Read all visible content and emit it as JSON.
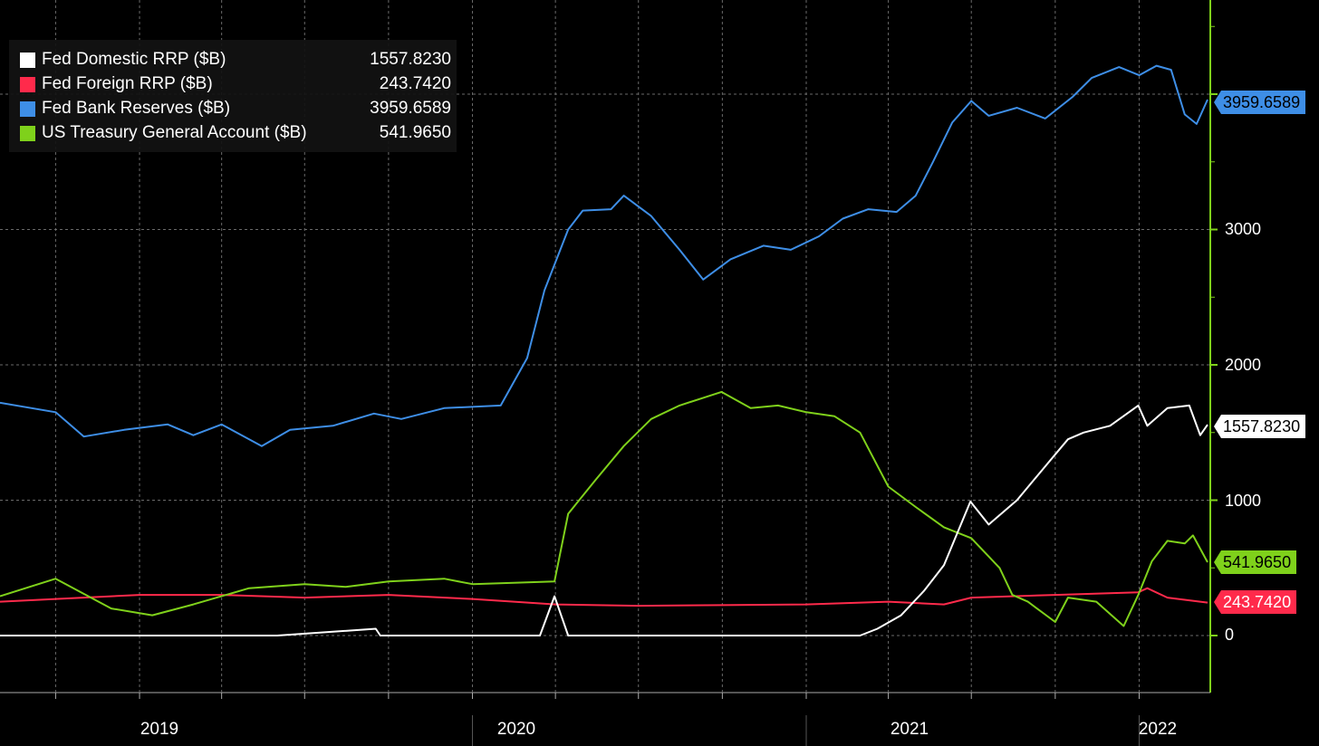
{
  "chart_data": {
    "type": "line",
    "title": "",
    "xlabel": "",
    "ylabel": "",
    "x_range": [
      "2018-08-01",
      "2022-03-20"
    ],
    "ylim": [
      -400,
      4700
    ],
    "y_ticks": [
      0,
      1000,
      2000,
      3000
    ],
    "x_tick_labels": [
      "2019",
      "2020",
      "2021",
      "2022"
    ],
    "legend_position": "top-left",
    "grid": true,
    "series": [
      {
        "name": "Fed Domestic RRP ($B)",
        "last_value": "1557.8230",
        "color": "#ffffff",
        "data": [
          [
            "2018-08-01",
            0
          ],
          [
            "2019-06-01",
            0
          ],
          [
            "2019-09-17",
            50
          ],
          [
            "2019-09-22",
            0
          ],
          [
            "2019-12-31",
            0
          ],
          [
            "2020-03-15",
            0
          ],
          [
            "2020-03-31",
            290
          ],
          [
            "2020-04-15",
            0
          ],
          [
            "2020-05-01",
            0
          ],
          [
            "2021-03-01",
            0
          ],
          [
            "2021-03-20",
            50
          ],
          [
            "2021-04-15",
            150
          ],
          [
            "2021-05-10",
            330
          ],
          [
            "2021-06-01",
            520
          ],
          [
            "2021-06-30",
            990
          ],
          [
            "2021-07-20",
            820
          ],
          [
            "2021-08-20",
            1000
          ],
          [
            "2021-09-20",
            1250
          ],
          [
            "2021-10-15",
            1450
          ],
          [
            "2021-11-01",
            1500
          ],
          [
            "2021-11-30",
            1550
          ],
          [
            "2021-12-31",
            1700
          ],
          [
            "2022-01-10",
            1550
          ],
          [
            "2022-02-01",
            1680
          ],
          [
            "2022-02-25",
            1700
          ],
          [
            "2022-03-09",
            1480
          ],
          [
            "2022-03-17",
            1557.823
          ]
        ]
      },
      {
        "name": "Fed Foreign RRP ($B)",
        "last_value": "243.7420",
        "color": "#ff2a4b",
        "data": [
          [
            "2018-08-01",
            250
          ],
          [
            "2018-10-01",
            270
          ],
          [
            "2019-01-01",
            300
          ],
          [
            "2019-04-01",
            300
          ],
          [
            "2019-07-01",
            280
          ],
          [
            "2019-10-01",
            300
          ],
          [
            "2020-01-01",
            270
          ],
          [
            "2020-04-01",
            230
          ],
          [
            "2020-07-01",
            220
          ],
          [
            "2020-10-01",
            225
          ],
          [
            "2021-01-01",
            230
          ],
          [
            "2021-04-01",
            250
          ],
          [
            "2021-06-01",
            230
          ],
          [
            "2021-07-01",
            280
          ],
          [
            "2021-10-01",
            300
          ],
          [
            "2021-12-31",
            320
          ],
          [
            "2022-01-10",
            350
          ],
          [
            "2022-02-01",
            280
          ],
          [
            "2022-03-17",
            243.742
          ]
        ]
      },
      {
        "name": "Fed Bank Reserves ($B)",
        "last_value": "3959.6589",
        "color": "#3e8ee6",
        "data": [
          [
            "2018-08-01",
            1720
          ],
          [
            "2018-10-01",
            1650
          ],
          [
            "2018-11-01",
            1470
          ],
          [
            "2018-12-15",
            1520
          ],
          [
            "2019-02-01",
            1560
          ],
          [
            "2019-03-01",
            1480
          ],
          [
            "2019-04-01",
            1560
          ],
          [
            "2019-05-15",
            1400
          ],
          [
            "2019-06-15",
            1520
          ],
          [
            "2019-08-01",
            1550
          ],
          [
            "2019-09-15",
            1640
          ],
          [
            "2019-10-15",
            1600
          ],
          [
            "2019-12-01",
            1680
          ],
          [
            "2020-02-01",
            1700
          ],
          [
            "2020-03-01",
            2050
          ],
          [
            "2020-03-20",
            2550
          ],
          [
            "2020-04-15",
            3000
          ],
          [
            "2020-05-01",
            3140
          ],
          [
            "2020-06-01",
            3150
          ],
          [
            "2020-06-15",
            3250
          ],
          [
            "2020-07-15",
            3100
          ],
          [
            "2020-08-15",
            2850
          ],
          [
            "2020-09-10",
            2630
          ],
          [
            "2020-10-10",
            2780
          ],
          [
            "2020-11-15",
            2880
          ],
          [
            "2020-12-15",
            2850
          ],
          [
            "2021-01-15",
            2950
          ],
          [
            "2021-02-10",
            3080
          ],
          [
            "2021-03-10",
            3150
          ],
          [
            "2021-04-10",
            3130
          ],
          [
            "2021-05-01",
            3250
          ],
          [
            "2021-05-20",
            3500
          ],
          [
            "2021-06-10",
            3790
          ],
          [
            "2021-07-01",
            3950
          ],
          [
            "2021-07-20",
            3840
          ],
          [
            "2021-08-20",
            3900
          ],
          [
            "2021-09-20",
            3820
          ],
          [
            "2021-10-20",
            3980
          ],
          [
            "2021-11-10",
            4120
          ],
          [
            "2021-12-10",
            4200
          ],
          [
            "2022-01-01",
            4140
          ],
          [
            "2022-01-20",
            4210
          ],
          [
            "2022-02-05",
            4180
          ],
          [
            "2022-02-20",
            3850
          ],
          [
            "2022-03-05",
            3780
          ],
          [
            "2022-03-17",
            3959.6589
          ]
        ]
      },
      {
        "name": "US Treasury General Account ($B)",
        "last_value": "541.9650",
        "color": "#7fd11b",
        "data": [
          [
            "2018-08-01",
            290
          ],
          [
            "2018-10-01",
            420
          ],
          [
            "2018-12-01",
            200
          ],
          [
            "2019-01-15",
            150
          ],
          [
            "2019-03-01",
            230
          ],
          [
            "2019-05-01",
            350
          ],
          [
            "2019-07-01",
            380
          ],
          [
            "2019-08-15",
            360
          ],
          [
            "2019-10-01",
            400
          ],
          [
            "2019-12-01",
            420
          ],
          [
            "2020-01-01",
            380
          ],
          [
            "2020-03-31",
            400
          ],
          [
            "2020-04-15",
            900
          ],
          [
            "2020-05-15",
            1150
          ],
          [
            "2020-06-15",
            1400
          ],
          [
            "2020-07-15",
            1600
          ],
          [
            "2020-08-15",
            1700
          ],
          [
            "2020-09-30",
            1800
          ],
          [
            "2020-11-01",
            1680
          ],
          [
            "2020-12-01",
            1700
          ],
          [
            "2021-01-01",
            1650
          ],
          [
            "2021-02-01",
            1620
          ],
          [
            "2021-03-01",
            1500
          ],
          [
            "2021-04-01",
            1100
          ],
          [
            "2021-05-01",
            950
          ],
          [
            "2021-06-01",
            800
          ],
          [
            "2021-07-01",
            720
          ],
          [
            "2021-08-01",
            500
          ],
          [
            "2021-08-15",
            300
          ],
          [
            "2021-09-01",
            250
          ],
          [
            "2021-10-01",
            100
          ],
          [
            "2021-10-15",
            280
          ],
          [
            "2021-11-15",
            250
          ],
          [
            "2021-12-15",
            70
          ],
          [
            "2021-12-31",
            300
          ],
          [
            "2022-01-15",
            550
          ],
          [
            "2022-02-01",
            700
          ],
          [
            "2022-02-20",
            680
          ],
          [
            "2022-03-01",
            740
          ],
          [
            "2022-03-17",
            541.965
          ]
        ]
      }
    ]
  }
}
